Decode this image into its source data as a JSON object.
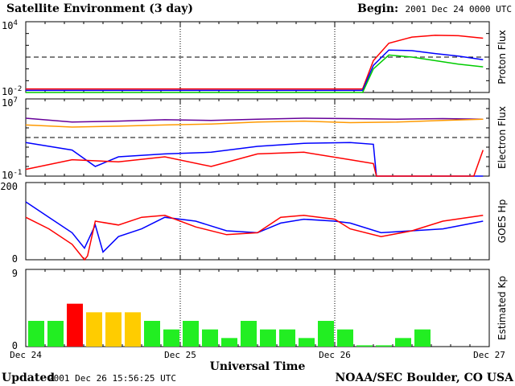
{
  "chart_data": {
    "title": "Satellite Environment (3 day)",
    "begin_label": "Begin:",
    "begin_value": "2001 Dec 24 0000 UTC",
    "xlabel": "Universal Time",
    "x_ticks": [
      "Dec 24",
      "Dec 25",
      "Dec 26",
      "Dec 27"
    ],
    "updated_label": "Updated",
    "updated_value": "2001 Dec 26 15:56:25 UTC",
    "credit": "NOAA/SEC Boulder, CO USA",
    "colors": {
      "red": "#ff0000",
      "blue": "#0000ff",
      "green": "#00cc00",
      "purple": "#660099",
      "orange": "#ff9900",
      "kp_green": "#22ee22",
      "kp_red": "#ff0000",
      "kp_yellow": "#ffcc00"
    },
    "panels": [
      {
        "type": "line",
        "ylabel": "Proton Flux",
        "scale": "log",
        "ylim": [
          0.01,
          10000
        ],
        "y_ticks": [
          {
            "base": "10",
            "exp": "4",
            "value": 10000
          },
          {
            "base": "10",
            "exp": "-2",
            "value": 0.01
          }
        ],
        "threshold": 10,
        "series": [
          {
            "color": "red",
            "x": [
              0,
              1.5,
              2.0,
              2.18,
              2.25,
              2.35,
              2.5,
              2.65,
              2.8,
              2.96
            ],
            "y": [
              0.02,
              0.02,
              0.02,
              0.02,
              5,
              150,
              500,
              700,
              650,
              400
            ]
          },
          {
            "color": "blue",
            "x": [
              0,
              1.5,
              2.0,
              2.18,
              2.25,
              2.35,
              2.5,
              2.65,
              2.8,
              2.96
            ],
            "y": [
              0.015,
              0.015,
              0.015,
              0.015,
              2,
              40,
              35,
              20,
              12,
              6
            ]
          },
          {
            "color": "green",
            "x": [
              0,
              1.5,
              2.0,
              2.18,
              2.25,
              2.35,
              2.5,
              2.65,
              2.8,
              2.96
            ],
            "y": [
              0.01,
              0.01,
              0.01,
              0.01,
              1,
              15,
              10,
              5,
              2.5,
              1.5
            ]
          }
        ]
      },
      {
        "type": "line",
        "ylabel": "Electron Flux",
        "scale": "log",
        "ylim": [
          0.1,
          10000000
        ],
        "y_ticks": [
          {
            "base": "10",
            "exp": "7",
            "value": 10000000
          },
          {
            "base": "10",
            "exp": "-1",
            "value": 0.1
          }
        ],
        "threshold": 1000,
        "series": [
          {
            "color": "purple",
            "x": [
              0,
              0.3,
              0.6,
              0.9,
              1.2,
              1.5,
              1.8,
              2.1,
              2.4,
              2.7,
              2.96
            ],
            "y": [
              100000,
              40000,
              50000,
              70000,
              60000,
              80000,
              100000,
              90000,
              80000,
              90000,
              80000
            ]
          },
          {
            "color": "orange",
            "x": [
              0,
              0.3,
              0.6,
              0.9,
              1.2,
              1.5,
              1.8,
              2.1,
              2.4,
              2.7,
              2.96
            ],
            "y": [
              20000,
              12000,
              15000,
              20000,
              25000,
              40000,
              50000,
              35000,
              40000,
              60000,
              80000
            ]
          },
          {
            "color": "blue",
            "x": [
              0,
              0.3,
              0.45,
              0.6,
              0.9,
              1.2,
              1.5,
              1.8,
              2.1,
              2.25,
              2.27,
              2.96
            ],
            "y": [
              300,
              50,
              1,
              10,
              20,
              30,
              120,
              250,
              300,
              200,
              0.1,
              0.1
            ]
          },
          {
            "color": "red",
            "x": [
              0,
              0.3,
              0.6,
              0.9,
              1.2,
              1.5,
              1.8,
              2.1,
              2.25,
              2.27,
              2.9,
              2.96
            ],
            "y": [
              0.5,
              5,
              3,
              10,
              1,
              20,
              30,
              5,
              2,
              0.1,
              0.1,
              50
            ]
          }
        ]
      },
      {
        "type": "line",
        "ylabel": "GOES Hp",
        "scale": "linear",
        "ylim": [
          0,
          200
        ],
        "y_ticks": [
          {
            "label": "200",
            "value": 200
          },
          {
            "label": "0",
            "value": 0
          }
        ],
        "series": [
          {
            "color": "blue",
            "x": [
              0,
              0.15,
              0.3,
              0.38,
              0.45,
              0.5,
              0.6,
              0.75,
              0.9,
              1.1,
              1.3,
              1.5,
              1.65,
              1.8,
              2.0,
              2.1,
              2.3,
              2.5,
              2.7,
              2.96
            ],
            "y": [
              150,
              110,
              70,
              30,
              90,
              20,
              60,
              80,
              110,
              100,
              75,
              70,
              95,
              105,
              100,
              95,
              70,
              75,
              80,
              100
            ]
          },
          {
            "color": "red",
            "x": [
              0,
              0.15,
              0.3,
              0.38,
              0.4,
              0.45,
              0.6,
              0.75,
              0.9,
              1.1,
              1.3,
              1.5,
              1.65,
              1.8,
              2.0,
              2.1,
              2.3,
              2.5,
              2.7,
              2.96
            ],
            "y": [
              110,
              80,
              40,
              0,
              10,
              100,
              90,
              110,
              115,
              85,
              65,
              70,
              110,
              115,
              105,
              80,
              60,
              75,
              100,
              115
            ]
          }
        ]
      },
      {
        "type": "bar",
        "ylabel": "Estimated Kp",
        "ylim": [
          0,
          9
        ],
        "y_ticks": [
          {
            "label": "9",
            "value": 9
          },
          {
            "label": "0",
            "value": 0
          }
        ],
        "bars": [
          {
            "start": 0,
            "value": 3,
            "color": "kp_green"
          },
          {
            "start": 0.125,
            "value": 3,
            "color": "kp_green"
          },
          {
            "start": 0.25,
            "value": 5,
            "color": "kp_red"
          },
          {
            "start": 0.375,
            "value": 4,
            "color": "kp_yellow"
          },
          {
            "start": 0.5,
            "value": 4,
            "color": "kp_yellow"
          },
          {
            "start": 0.625,
            "value": 4,
            "color": "kp_yellow"
          },
          {
            "start": 0.75,
            "value": 3,
            "color": "kp_green"
          },
          {
            "start": 0.875,
            "value": 2,
            "color": "kp_green"
          },
          {
            "start": 1.0,
            "value": 3,
            "color": "kp_green"
          },
          {
            "start": 1.125,
            "value": 2,
            "color": "kp_green"
          },
          {
            "start": 1.25,
            "value": 1,
            "color": "kp_green"
          },
          {
            "start": 1.375,
            "value": 3,
            "color": "kp_green"
          },
          {
            "start": 1.5,
            "value": 2,
            "color": "kp_green"
          },
          {
            "start": 1.625,
            "value": 2,
            "color": "kp_green"
          },
          {
            "start": 1.75,
            "value": 1,
            "color": "kp_green"
          },
          {
            "start": 1.875,
            "value": 3,
            "color": "kp_green"
          },
          {
            "start": 2.0,
            "value": 2,
            "color": "kp_green"
          },
          {
            "start": 2.125,
            "value": 0.15,
            "color": "kp_green"
          },
          {
            "start": 2.25,
            "value": 0.15,
            "color": "kp_green"
          },
          {
            "start": 2.375,
            "value": 1,
            "color": "kp_green"
          },
          {
            "start": 2.5,
            "value": 2,
            "color": "kp_green"
          }
        ]
      }
    ]
  }
}
